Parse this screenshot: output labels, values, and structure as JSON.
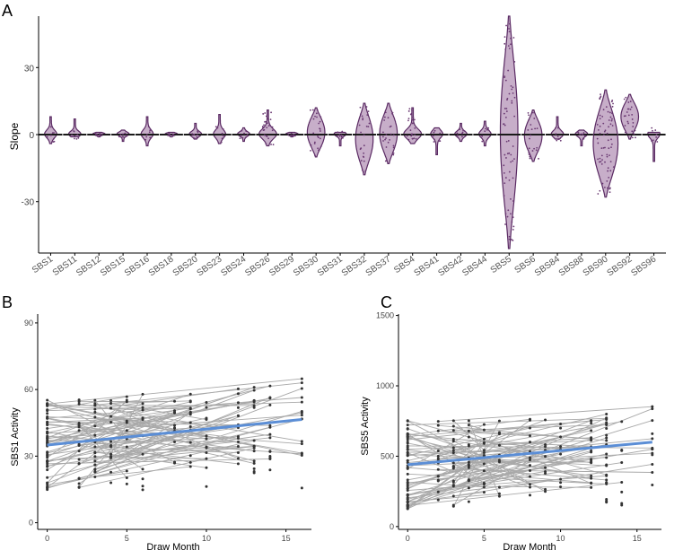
{
  "panels": {
    "a": {
      "label": "A"
    },
    "b": {
      "label": "B"
    },
    "c": {
      "label": "C"
    }
  },
  "chart_data": [
    {
      "type": "violin",
      "panel": "A",
      "ylabel": "Slope",
      "xlabel": "",
      "ylim": [
        -53,
        53
      ],
      "yticks": [
        -30,
        0,
        30
      ],
      "categories": [
        "SBS1",
        "SBS11",
        "SBS12",
        "SBS15",
        "SBS16",
        "SBS18",
        "SBS20",
        "SBS23",
        "SBS24",
        "SBS26",
        "SBS29",
        "SBS30",
        "SBS31",
        "SBS32",
        "SBS37",
        "SBS4",
        "SBS41",
        "SBS42",
        "SBS44",
        "SBS5",
        "SBS6",
        "SBS84",
        "SBS88",
        "SBS90",
        "SBS92",
        "SBS96"
      ],
      "ranges": [
        [
          -4,
          8
        ],
        [
          -1,
          7
        ],
        [
          -1,
          1
        ],
        [
          -3,
          2
        ],
        [
          -5,
          8
        ],
        [
          -1,
          1
        ],
        [
          -2,
          5
        ],
        [
          -4,
          9
        ],
        [
          -3,
          3
        ],
        [
          -5,
          11
        ],
        [
          -1,
          1
        ],
        [
          -10,
          12
        ],
        [
          -5,
          1
        ],
        [
          -18,
          14
        ],
        [
          -13,
          14
        ],
        [
          -4,
          12
        ],
        [
          -9,
          3
        ],
        [
          -3,
          5
        ],
        [
          -5,
          6
        ],
        [
          -51,
          53
        ],
        [
          -12,
          11
        ],
        [
          -2,
          8
        ],
        [
          -5,
          2
        ],
        [
          -28,
          20
        ],
        [
          -2,
          18
        ],
        [
          -12,
          1
        ]
      ],
      "fill_color": "#c7aec9",
      "stroke_color": "#5a2a63"
    },
    {
      "type": "scatter_with_lines",
      "panel": "B",
      "xlabel": "Draw Month",
      "ylabel": "SBS1  Activity",
      "xlim": [
        -0.6,
        16.6
      ],
      "ylim": [
        -3,
        94
      ],
      "xticks": [
        0,
        5,
        10,
        15
      ],
      "yticks": [
        0,
        30,
        60,
        90
      ],
      "trend": {
        "x": [
          0,
          16
        ],
        "y": [
          35,
          46.5
        ]
      },
      "trend_color": "#5b8ed6",
      "point_color": "#333333",
      "line_color": "#a9a9a9"
    },
    {
      "type": "scatter_with_lines",
      "panel": "C",
      "xlabel": "Draw Month",
      "ylabel": "SBS5  Activity",
      "xlim": [
        -0.6,
        16.6
      ],
      "ylim": [
        -20,
        1510
      ],
      "xticks": [
        0,
        5,
        10,
        15
      ],
      "yticks": [
        0,
        500,
        1000,
        1500
      ],
      "trend": {
        "x": [
          0,
          16
        ],
        "y": [
          440,
          600
        ]
      },
      "trend_color": "#5b8ed6",
      "point_color": "#333333",
      "line_color": "#a9a9a9"
    }
  ]
}
